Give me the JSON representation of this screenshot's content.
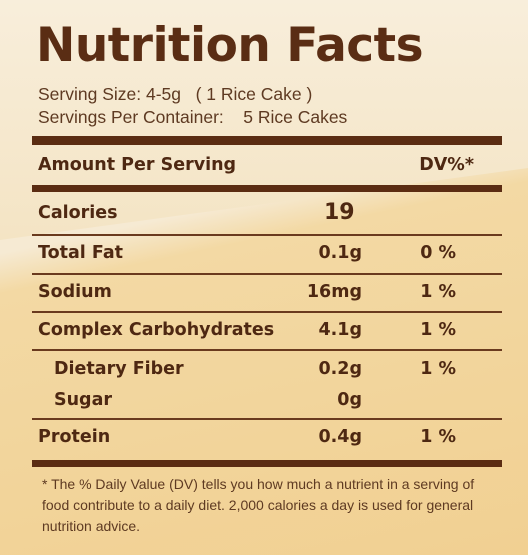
{
  "title": "Nutrition Facts",
  "serving_size": "Serving Size: 4-5g   ( 1 Rice Cake )",
  "servings_per_container": "Servings Per Container:    5 Rice Cakes",
  "header": {
    "amount_label": "Amount Per Serving",
    "dv_label": "DV%*"
  },
  "calories": {
    "label": "Calories",
    "value": "19"
  },
  "rows": [
    {
      "label": "Total Fat",
      "amount": "0.1g",
      "dv": "0 %"
    },
    {
      "label": "Sodium",
      "amount": "16mg",
      "dv": "1 %"
    },
    {
      "label": "Complex Carbohydrates",
      "amount": "4.1g",
      "dv": "1 %"
    },
    {
      "label": "Dietary Fiber",
      "amount": "0.2g",
      "dv": "1 %"
    },
    {
      "label": "Sugar",
      "amount": "0g",
      "dv": ""
    },
    {
      "label": "Protein",
      "amount": "0.4g",
      "dv": "1 %"
    }
  ],
  "footnote": "* The % Daily Value (DV) tells you how much a nutrient in a serving of food contribute to a daily diet. 2,000 calories a day is used for general nutrition advice.",
  "colors": {
    "text": "#5a2d14",
    "bar": "#5b2c12",
    "bg_top": "#f6ead3",
    "bg_bottom": "#f1d092"
  }
}
